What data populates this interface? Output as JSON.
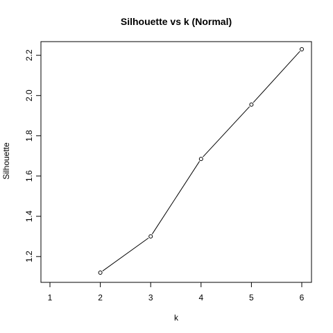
{
  "chart_data": {
    "type": "line",
    "title": "Silhouette vs k (Normal)",
    "xlabel": "k",
    "ylabel": "Silhouette",
    "xlim": [
      1,
      6
    ],
    "ylim": [
      1.12,
      2.23
    ],
    "xticks": [
      1,
      2,
      3,
      4,
      5,
      6
    ],
    "yticks": [
      1.2,
      1.4,
      1.6,
      1.8,
      2.0,
      2.2
    ],
    "ytick_labels": [
      "1.2",
      "1.4",
      "1.6",
      "1.8",
      "2.0",
      "2.2"
    ],
    "series": [
      {
        "x": [
          2,
          3,
          4,
          5,
          6
        ],
        "y": [
          1.12,
          1.3,
          1.685,
          1.955,
          2.23
        ],
        "marker": "open-circle",
        "line": "solid",
        "color": "#000000"
      }
    ],
    "grid": false
  }
}
